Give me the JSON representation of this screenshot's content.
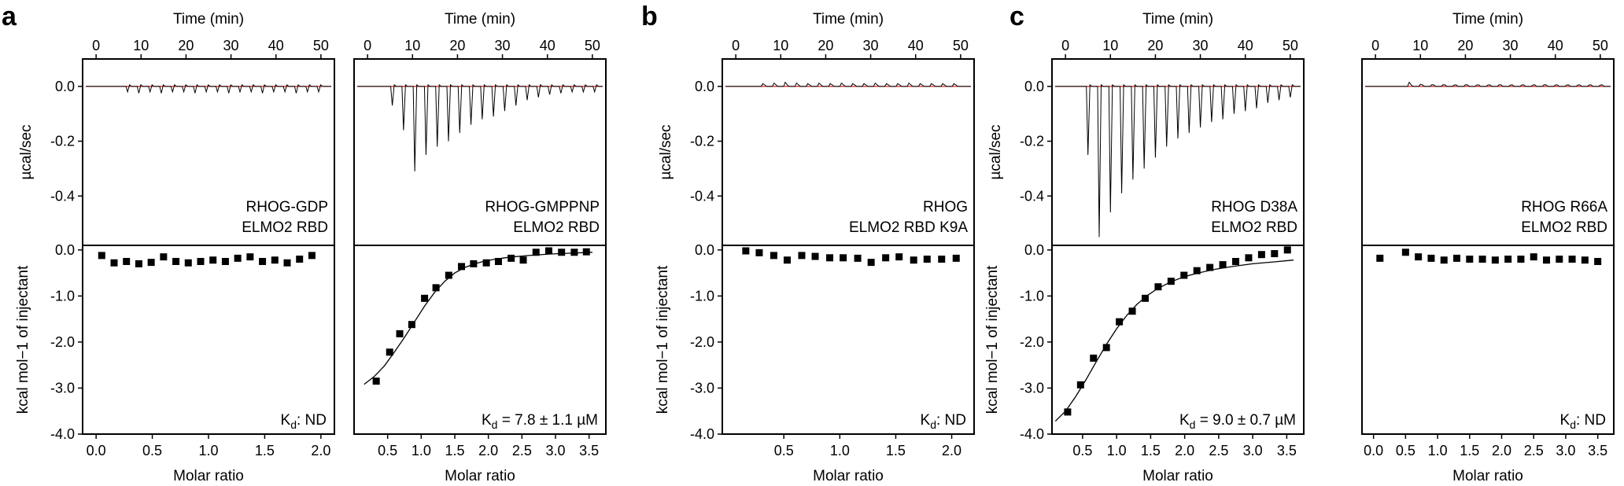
{
  "figure": {
    "panel_letters": [
      "a",
      "b",
      "c"
    ]
  },
  "chart_data": [
    {
      "type": "scatter",
      "panel": "a",
      "title": "RHOG-GDP / ELMO2 RBD",
      "top_xlabel": "Time (min)",
      "top_xticks": [
        "0",
        "10",
        "20",
        "30",
        "40",
        "50"
      ],
      "top_xlim": [
        -3,
        53
      ],
      "top_ylabel": "µcal/sec",
      "top_yticks": [
        "0.0",
        "-0.2",
        "-0.4"
      ],
      "top_ylim": [
        -0.58,
        0.1
      ],
      "annotation": [
        "RHOG-GDP",
        "ELMO2 RBD"
      ],
      "peaks": {
        "times": [
          7,
          9.5,
          12,
          14.5,
          17,
          19.5,
          22,
          24.5,
          27,
          29.5,
          32,
          34.5,
          37,
          39.5,
          42,
          44.5,
          47,
          49.5
        ],
        "heights": [
          -0.02,
          -0.025,
          -0.02,
          -0.025,
          -0.02,
          -0.02,
          -0.025,
          -0.02,
          -0.02,
          -0.025,
          -0.02,
          -0.02,
          -0.025,
          -0.02,
          -0.02,
          -0.025,
          -0.02,
          -0.02
        ]
      },
      "xlabel": "Molar ratio",
      "xticks": [
        "0.0",
        "0.5",
        "1.0",
        "1.5",
        "2.0"
      ],
      "xlim": [
        -0.12,
        2.12
      ],
      "ylabel": "kcal mol−1 of injectant",
      "yticks": [
        "0.0",
        "-1.0",
        "-2.0",
        "-3.0",
        "-4.0"
      ],
      "ylim": [
        -4.0,
        0.1
      ],
      "x": [
        0.05,
        0.16,
        0.27,
        0.38,
        0.49,
        0.6,
        0.71,
        0.82,
        0.93,
        1.04,
        1.15,
        1.26,
        1.37,
        1.48,
        1.59,
        1.7,
        1.81,
        1.92
      ],
      "y": [
        -0.12,
        -0.28,
        -0.25,
        -0.3,
        -0.27,
        -0.15,
        -0.25,
        -0.28,
        -0.25,
        -0.22,
        -0.25,
        -0.18,
        -0.15,
        -0.25,
        -0.22,
        -0.28,
        -0.2,
        -0.12
      ],
      "fit": null,
      "kd_label": "ND"
    },
    {
      "type": "scatter",
      "panel": "a",
      "title": "RHOG-GMPPNP / ELMO2 RBD",
      "top_xlabel": "Time (min)",
      "top_xticks": [
        "0",
        "10",
        "20",
        "30",
        "40",
        "50"
      ],
      "top_xlim": [
        -3,
        53
      ],
      "top_ylabel": "",
      "top_yticks": [],
      "top_ylim": [
        -0.58,
        0.1
      ],
      "annotation": [
        "RHOG-GMPPNP",
        "ELMO2 RBD"
      ],
      "peaks": {
        "times": [
          5.5,
          8,
          10.5,
          13,
          15.5,
          18,
          20.5,
          23,
          25.5,
          28,
          30.5,
          33,
          35.5,
          38,
          40.5,
          43,
          45.5,
          48,
          50.5
        ],
        "heights": [
          -0.07,
          -0.16,
          -0.31,
          -0.25,
          -0.22,
          -0.2,
          -0.17,
          -0.14,
          -0.12,
          -0.11,
          -0.09,
          -0.07,
          -0.05,
          -0.04,
          -0.03,
          -0.025,
          -0.02,
          -0.02,
          -0.02
        ]
      },
      "xlabel": "Molar ratio",
      "xticks": [
        "0.5",
        "1.0",
        "1.5",
        "2.0",
        "2.5",
        "3.0",
        "3.5"
      ],
      "xlim": [
        0.0,
        3.75
      ],
      "ylabel": "",
      "yticks": [],
      "ylim": [
        -4.0,
        0.1
      ],
      "x": [
        0.33,
        0.53,
        0.68,
        0.86,
        1.05,
        1.22,
        1.41,
        1.6,
        1.78,
        1.97,
        2.15,
        2.34,
        2.52,
        2.71,
        2.9,
        3.09,
        3.28,
        3.46
      ],
      "y": [
        -2.85,
        -2.22,
        -1.82,
        -1.62,
        -1.05,
        -0.82,
        -0.55,
        -0.36,
        -0.3,
        -0.28,
        -0.25,
        -0.18,
        -0.22,
        -0.05,
        -0.02,
        -0.05,
        -0.05,
        -0.04
      ],
      "fit": {
        "x": [
          0.15,
          0.3,
          0.45,
          0.6,
          0.75,
          0.9,
          1.05,
          1.2,
          1.35,
          1.5,
          1.65,
          1.8,
          1.95,
          2.1,
          2.3,
          2.6,
          2.9,
          3.2,
          3.55
        ],
        "y": [
          -2.92,
          -2.75,
          -2.52,
          -2.22,
          -1.9,
          -1.56,
          -1.22,
          -0.92,
          -0.68,
          -0.5,
          -0.38,
          -0.3,
          -0.24,
          -0.2,
          -0.16,
          -0.12,
          -0.09,
          -0.07,
          -0.05
        ]
      },
      "kd_label": "= 7.8 ± 1.1 µM"
    },
    {
      "type": "scatter",
      "panel": "b",
      "title": "RHOG / ELMO2 RBD K9A",
      "top_xlabel": "Time (min)",
      "top_xticks": [
        "0",
        "10",
        "20",
        "30",
        "40",
        "50"
      ],
      "top_xlim": [
        -3,
        53
      ],
      "top_ylabel": "µcal/sec",
      "top_yticks": [
        "0.0",
        "-0.2",
        "-0.4"
      ],
      "top_ylim": [
        -0.58,
        0.1
      ],
      "annotation": [
        "RHOG",
        "ELMO2 RBD K9A"
      ],
      "peaks": {
        "times": [
          6,
          8.5,
          11,
          13.5,
          16,
          18.5,
          21,
          23.5,
          26,
          28.5,
          31,
          33.5,
          36,
          38.5,
          41,
          43.5,
          46,
          48.5
        ],
        "heights": [
          0.01,
          0.012,
          0.015,
          0.012,
          0.01,
          0.012,
          0.01,
          0.012,
          0.01,
          0.01,
          0.012,
          0.01,
          0.01,
          0.012,
          0.01,
          0.01,
          0.01,
          0.01
        ]
      },
      "xlabel": "Molar ratio",
      "xticks": [
        "0.5",
        "1.0",
        "1.5",
        "2.0"
      ],
      "xlim": [
        -0.05,
        2.2
      ],
      "ylabel": "kcal mol−1 of injectant",
      "yticks": [
        "0.0",
        "-1.0",
        "-2.0",
        "-3.0",
        "-4.0"
      ],
      "ylim": [
        -4.0,
        0.1
      ],
      "x": [
        0.16,
        0.28,
        0.41,
        0.53,
        0.66,
        0.78,
        0.91,
        1.03,
        1.16,
        1.28,
        1.41,
        1.53,
        1.66,
        1.78,
        1.91,
        2.04
      ],
      "y": [
        -0.02,
        -0.06,
        -0.12,
        -0.22,
        -0.12,
        -0.14,
        -0.17,
        -0.17,
        -0.18,
        -0.27,
        -0.17,
        -0.15,
        -0.22,
        -0.2,
        -0.2,
        -0.18
      ],
      "fit": null,
      "kd_label": "ND"
    },
    {
      "type": "scatter",
      "panel": "c",
      "title": "RHOG D38A / ELMO2 RBD",
      "top_xlabel": "Time (min)",
      "top_xticks": [
        "0",
        "10",
        "20",
        "30",
        "40",
        "50"
      ],
      "top_xlim": [
        -3,
        53
      ],
      "top_ylabel": "µcal/sec",
      "top_yticks": [
        "0.0",
        "-0.2",
        "-0.4"
      ],
      "top_ylim": [
        -0.58,
        0.1
      ],
      "annotation": [
        "RHOG D38A",
        "ELMO2 RBD"
      ],
      "peaks": {
        "times": [
          5,
          7.5,
          10,
          12.5,
          15,
          17.5,
          20,
          22.5,
          25,
          27.5,
          30,
          32.5,
          35,
          37.5,
          40,
          42.5,
          45,
          47.5,
          50
        ],
        "heights": [
          -0.25,
          -0.55,
          -0.46,
          -0.39,
          -0.34,
          -0.3,
          -0.26,
          -0.22,
          -0.19,
          -0.17,
          -0.15,
          -0.13,
          -0.12,
          -0.1,
          -0.09,
          -0.08,
          -0.06,
          -0.05,
          -0.04
        ]
      },
      "xlabel": "Molar ratio",
      "xticks": [
        "0.5",
        "1.0",
        "1.5",
        "2.0",
        "2.5",
        "3.0",
        "3.5"
      ],
      "xlim": [
        0.05,
        3.75
      ],
      "ylabel": "kcal mol−1 of injectant",
      "yticks": [
        "0.0",
        "-1.0",
        "-2.0",
        "-3.0",
        "-4.0"
      ],
      "ylim": [
        -4.0,
        0.1
      ],
      "x": [
        0.28,
        0.47,
        0.66,
        0.85,
        1.04,
        1.23,
        1.42,
        1.61,
        1.8,
        1.99,
        2.18,
        2.37,
        2.56,
        2.75,
        2.94,
        3.13,
        3.32,
        3.51
      ],
      "y": [
        -3.52,
        -2.93,
        -2.35,
        -2.12,
        -1.56,
        -1.33,
        -1.05,
        -0.8,
        -0.68,
        -0.55,
        -0.45,
        -0.38,
        -0.32,
        -0.25,
        -0.17,
        -0.1,
        -0.08,
        0.0
      ],
      "fit": {
        "x": [
          0.1,
          0.25,
          0.4,
          0.55,
          0.7,
          0.85,
          1.0,
          1.15,
          1.3,
          1.45,
          1.6,
          1.8,
          2.0,
          2.2,
          2.45,
          2.7,
          3.0,
          3.3,
          3.6
        ],
        "y": [
          -3.72,
          -3.5,
          -3.18,
          -2.82,
          -2.43,
          -2.05,
          -1.71,
          -1.42,
          -1.18,
          -0.99,
          -0.84,
          -0.69,
          -0.58,
          -0.5,
          -0.42,
          -0.36,
          -0.3,
          -0.26,
          -0.22
        ]
      },
      "kd_label": "= 9.0 ± 0.7 µM"
    },
    {
      "type": "scatter",
      "panel": "c",
      "title": "RHOG R66A / ELMO2 RBD",
      "top_xlabel": "Time (min)",
      "top_xticks": [
        "0",
        "10",
        "20",
        "30",
        "40",
        "50"
      ],
      "top_xlim": [
        -3,
        53
      ],
      "top_ylabel": "",
      "top_yticks": [],
      "top_ylim": [
        -0.58,
        0.1
      ],
      "annotation": [
        "RHOG R66A",
        "ELMO2 RBD"
      ],
      "peaks": {
        "times": [
          7.5,
          10,
          12.5,
          15,
          17.5,
          20,
          22.5,
          25,
          27.5,
          30,
          32.5,
          35,
          37.5,
          40,
          42.5,
          45,
          47.5,
          50
        ],
        "heights": [
          0.015,
          0.008,
          0.006,
          0.006,
          0.005,
          0.006,
          0.005,
          0.005,
          0.006,
          0.005,
          0.005,
          0.005,
          0.006,
          0.005,
          0.005,
          0.005,
          0.005,
          0.005
        ]
      },
      "xlabel": "Molar ratio",
      "xticks": [
        "0.0",
        "0.5",
        "1.0",
        "1.5",
        "2.0",
        "2.5",
        "3.0",
        "3.5"
      ],
      "xlim": [
        -0.18,
        3.75
      ],
      "ylabel": "",
      "yticks": [],
      "ylim": [
        -4.0,
        0.1
      ],
      "x": [
        0.1,
        0.5,
        0.7,
        0.9,
        1.1,
        1.3,
        1.5,
        1.7,
        1.9,
        2.1,
        2.3,
        2.5,
        2.7,
        2.9,
        3.1,
        3.3,
        3.5
      ],
      "y": [
        -0.18,
        -0.05,
        -0.15,
        -0.18,
        -0.22,
        -0.18,
        -0.2,
        -0.2,
        -0.22,
        -0.2,
        -0.2,
        -0.15,
        -0.22,
        -0.2,
        -0.2,
        -0.22,
        -0.25
      ],
      "fit": null,
      "kd_label": "ND"
    }
  ]
}
